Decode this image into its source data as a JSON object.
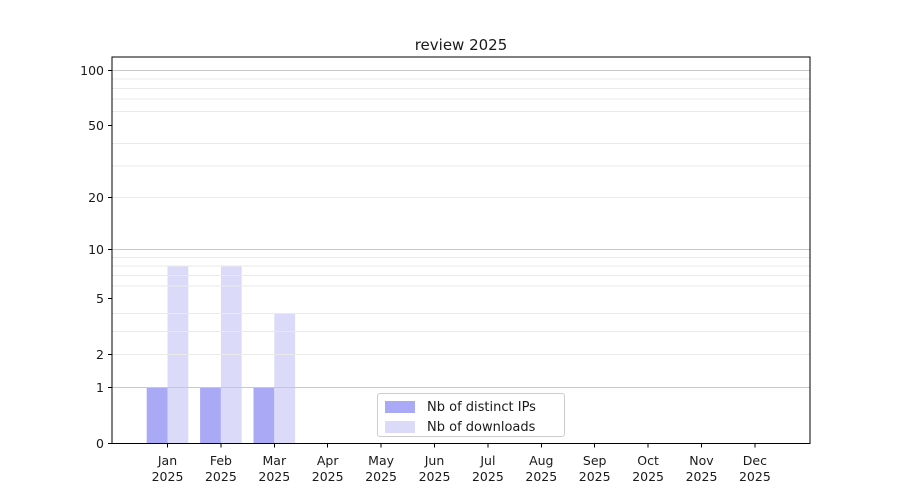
{
  "figure": {
    "title": "review 2025",
    "background_color": "#ffffff",
    "spine_color": "#000000",
    "major_grid_color": "#c8c8c8",
    "minor_grid_color": "#eaeaea",
    "text_color": "#1a1a1a"
  },
  "legend": {
    "entries": [
      {
        "label": "Nb of distinct IPs",
        "color": "#a9a9f6"
      },
      {
        "label": "Nb of downloads",
        "color": "#dbdbf9"
      }
    ]
  },
  "chart_data": {
    "type": "bar",
    "title": "review 2025",
    "categories": [
      "Jan 2025",
      "Feb 2025",
      "Mar 2025",
      "Apr 2025",
      "May 2025",
      "Jun 2025",
      "Jul 2025",
      "Aug 2025",
      "Sep 2025",
      "Oct 2025",
      "Nov 2025",
      "Dec 2025"
    ],
    "series": [
      {
        "name": "Nb of distinct IPs",
        "color": "#a9a9f6",
        "values": [
          1,
          1,
          1,
          0,
          0,
          0,
          0,
          0,
          0,
          0,
          0,
          0
        ]
      },
      {
        "name": "Nb of downloads",
        "color": "#dbdbf9",
        "values": [
          8,
          8,
          4,
          0,
          0,
          0,
          0,
          0,
          0,
          0,
          0,
          0
        ]
      }
    ],
    "xlabel": "",
    "ylabel": "",
    "yscale": "log1p",
    "ylim": [
      0,
      118
    ],
    "yticks": [
      0,
      1,
      2,
      5,
      10,
      20,
      50,
      100
    ],
    "minor_grid_values": [
      2,
      3,
      4,
      6,
      7,
      8,
      9,
      20,
      30,
      40,
      60,
      70,
      80,
      90
    ],
    "major_grid_values": [
      1,
      10,
      100
    ],
    "grid": "horizontal",
    "legend_position": "inside lower-center"
  }
}
